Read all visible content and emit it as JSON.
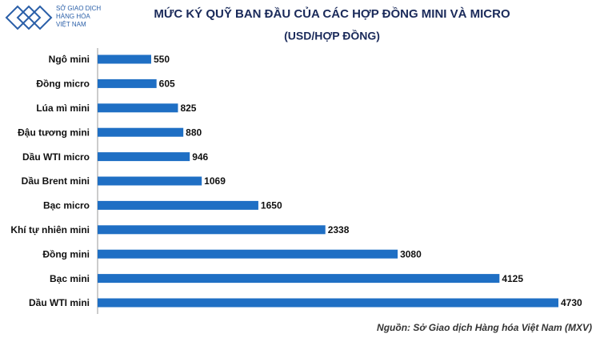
{
  "logo": {
    "lines": [
      "SỞ GIAO DỊCH",
      "HÀNG HÓA",
      "VIỆT NAM"
    ]
  },
  "chart_data": {
    "type": "bar",
    "orientation": "horizontal",
    "title": "MỨC KÝ QUỸ BAN ĐẦU CỦA CÁC HỢP ĐỒNG MINI VÀ MICRO",
    "subtitle": "(USD/HỢP ĐỒNG)",
    "categories": [
      "Ngô mini",
      "Đồng micro",
      "Lúa mì mini",
      "Đậu tương mini",
      "Dầu WTI micro",
      "Dầu Brent mini",
      "Bạc micro",
      "Khí tự nhiên mini",
      "Đồng mini",
      "Bạc mini",
      "Dầu WTI mini"
    ],
    "values": [
      550,
      605,
      825,
      880,
      946,
      1069,
      1650,
      2338,
      3080,
      4125,
      4730
    ],
    "color": "#1f6fc4",
    "source": "Nguồn: Sở Giao dịch Hàng hóa Việt Nam (MXV)"
  }
}
